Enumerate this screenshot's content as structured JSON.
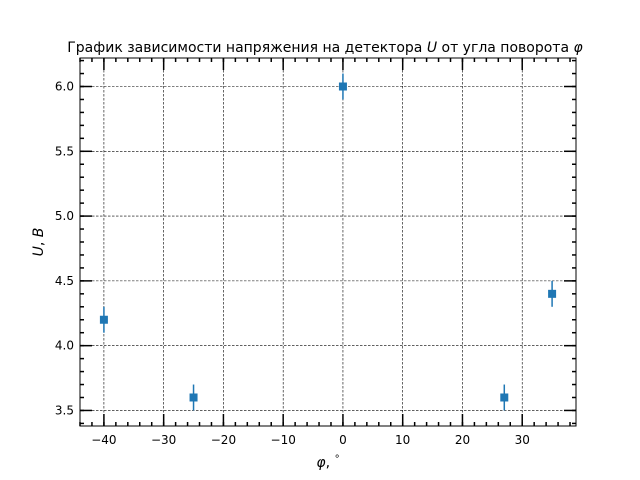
{
  "chart_data": {
    "type": "scatter",
    "title": "График зависимости напряжения на детектора U от угла поворота φ",
    "title_parts": {
      "prefix": "График зависимости напряжения на детектора ",
      "var_u": "U",
      "middle": " от угла поворота ",
      "var_phi": "φ"
    },
    "xlabel_parts": {
      "var": "φ",
      "sep": ", ",
      "unit": "°"
    },
    "ylabel_parts": {
      "var": "U",
      "sep": ", ",
      "unit": "B"
    },
    "xlim": [
      -44,
      39
    ],
    "ylim": [
      3.38,
      6.22
    ],
    "x_ticks": [
      -40,
      -30,
      -20,
      -10,
      0,
      10,
      20,
      30
    ],
    "x_tick_labels": [
      "−40",
      "−30",
      "−20",
      "−10",
      "0",
      "10",
      "20",
      "30"
    ],
    "y_ticks": [
      3.5,
      4.0,
      4.5,
      5.0,
      5.5,
      6.0
    ],
    "y_tick_labels": [
      "3.5",
      "4.0",
      "4.5",
      "5.0",
      "5.5",
      "6.0"
    ],
    "x_minor_step": 2,
    "y_minor_step": 0.1,
    "grid": true,
    "marker": "square",
    "color": "#1f77b4",
    "points": [
      {
        "x": -40,
        "y": 4.2,
        "yerr": 0.1
      },
      {
        "x": -25,
        "y": 3.6,
        "yerr": 0.1
      },
      {
        "x": 0,
        "y": 6.0,
        "yerr": 0.1
      },
      {
        "x": 27,
        "y": 3.6,
        "yerr": 0.1
      },
      {
        "x": 35,
        "y": 4.4,
        "yerr": 0.1
      }
    ]
  }
}
